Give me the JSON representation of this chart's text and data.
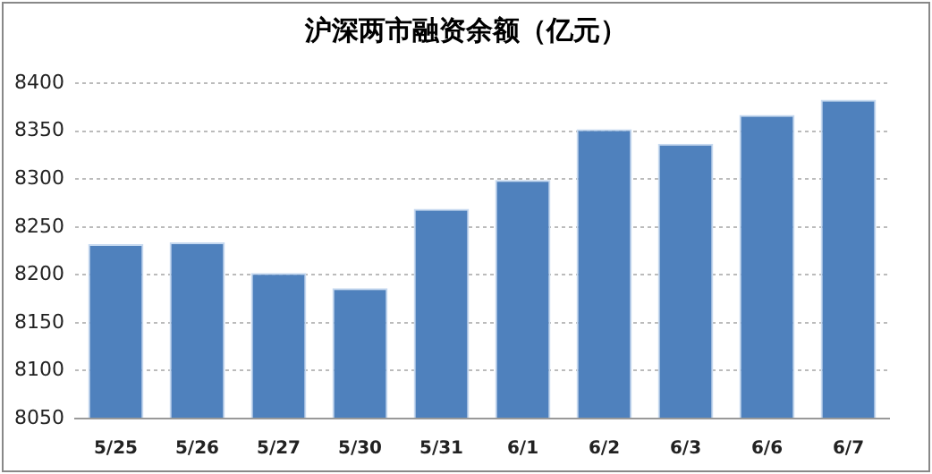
{
  "chart_data": {
    "type": "bar",
    "title": "沪深两市融资余额（亿元）",
    "categories": [
      "5/25",
      "5/26",
      "5/27",
      "5/30",
      "5/31",
      "6/1",
      "6/2",
      "6/3",
      "6/6",
      "6/7"
    ],
    "values": [
      8232,
      8234,
      8202,
      8186,
      8269,
      8299,
      8352,
      8337,
      8367,
      8383
    ],
    "color": "#4f81bd",
    "ylim": [
      8050,
      8400
    ],
    "yticks": [
      8050,
      8100,
      8150,
      8200,
      8250,
      8300,
      8350,
      8400
    ],
    "grid": "y",
    "legend": false
  }
}
